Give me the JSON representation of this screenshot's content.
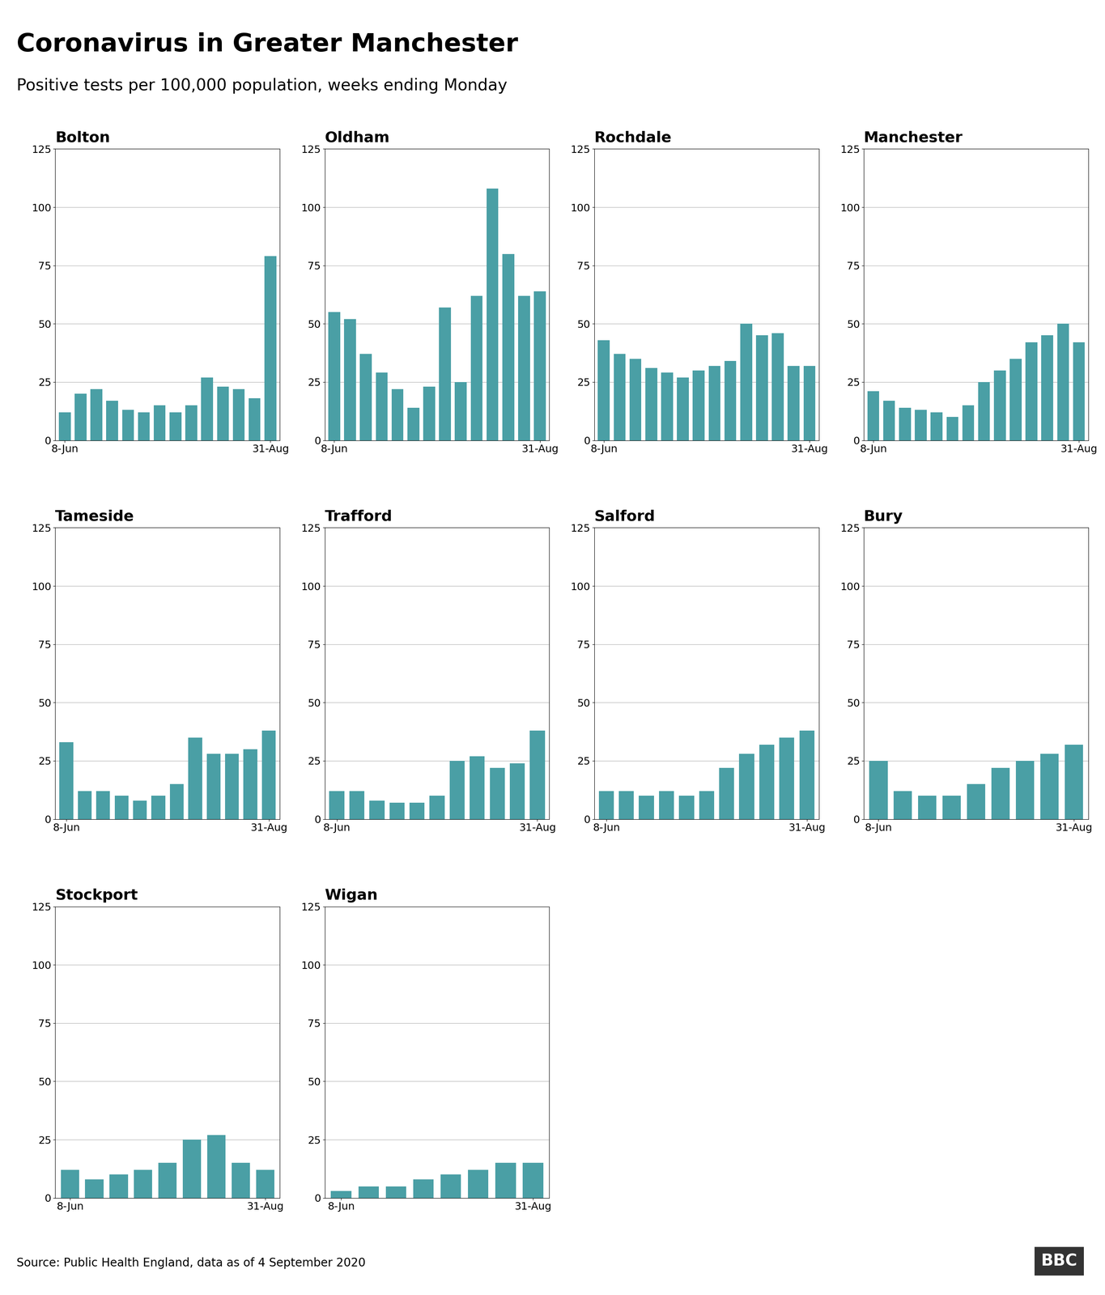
{
  "title": "Coronavirus in Greater Manchester",
  "subtitle": "Positive tests per 100,000 population, weeks ending Monday",
  "source": "Source: Public Health England, data as of 4 September 2020",
  "annotations": [
    "BBC"
  ],
  "chart_data": [
    {
      "type": "bar",
      "title": "Bolton",
      "categories": [
        "8-Jun",
        null,
        null,
        null,
        null,
        null,
        null,
        null,
        null,
        null,
        null,
        null,
        null,
        "31-Aug"
      ],
      "values": [
        12,
        20,
        22,
        17,
        13,
        12,
        15,
        12,
        15,
        27,
        23,
        22,
        18,
        79
      ],
      "color": "#4a9fa5",
      "ylim": [
        0,
        125
      ],
      "yticks": [
        0,
        25,
        50,
        75,
        100,
        125
      ],
      "grid": true
    },
    {
      "type": "bar",
      "title": "Oldham",
      "categories": [
        "8-Jun",
        null,
        null,
        null,
        null,
        null,
        null,
        null,
        null,
        null,
        null,
        null,
        null,
        "31-Aug"
      ],
      "values": [
        55,
        52,
        37,
        29,
        22,
        14,
        23,
        57,
        25,
        62,
        108,
        80,
        62,
        64
      ],
      "color": "#4a9fa5",
      "ylim": [
        0,
        125
      ],
      "yticks": [
        0,
        25,
        50,
        75,
        100,
        125
      ],
      "grid": true
    },
    {
      "type": "bar",
      "title": "Rochdale",
      "categories": [
        "8-Jun",
        null,
        null,
        null,
        null,
        null,
        null,
        null,
        null,
        null,
        null,
        null,
        null,
        "31-Aug"
      ],
      "values": [
        43,
        37,
        35,
        31,
        29,
        27,
        30,
        32,
        34,
        50,
        45,
        46,
        32,
        32
      ],
      "color": "#4a9fa5",
      "ylim": [
        0,
        125
      ],
      "yticks": [
        0,
        25,
        50,
        75,
        100,
        125
      ],
      "grid": true
    },
    {
      "type": "bar",
      "title": "Manchester",
      "categories": [
        "8-Jun",
        null,
        null,
        null,
        null,
        null,
        null,
        null,
        null,
        null,
        null,
        null,
        null,
        "31-Aug"
      ],
      "values": [
        21,
        17,
        14,
        13,
        12,
        10,
        15,
        25,
        30,
        35,
        42,
        45,
        50,
        42
      ],
      "color": "#4a9fa5",
      "ylim": [
        0,
        125
      ],
      "yticks": [
        0,
        25,
        50,
        75,
        100,
        125
      ],
      "grid": true
    },
    {
      "type": "bar",
      "title": "Tameside",
      "categories": [
        "8-Jun",
        null,
        null,
        null,
        null,
        null,
        null,
        null,
        null,
        null,
        null,
        "31-Aug"
      ],
      "values": [
        33,
        12,
        12,
        10,
        8,
        10,
        15,
        35,
        28,
        28,
        30,
        38
      ],
      "color": "#4a9fa5",
      "ylim": [
        0,
        125
      ],
      "yticks": [
        0,
        25,
        50,
        75,
        100,
        125
      ],
      "grid": true
    },
    {
      "type": "bar",
      "title": "Trafford",
      "categories": [
        "8-Jun",
        null,
        null,
        null,
        null,
        null,
        null,
        null,
        null,
        null,
        "31-Aug"
      ],
      "values": [
        12,
        12,
        8,
        7,
        7,
        10,
        25,
        27,
        22,
        24,
        38
      ],
      "color": "#4a9fa5",
      "ylim": [
        0,
        125
      ],
      "yticks": [
        0,
        25,
        50,
        75,
        100,
        125
      ],
      "grid": true
    },
    {
      "type": "bar",
      "title": "Salford",
      "categories": [
        "8-Jun",
        null,
        null,
        null,
        null,
        null,
        null,
        null,
        null,
        null,
        "31-Aug"
      ],
      "values": [
        12,
        12,
        10,
        12,
        10,
        12,
        22,
        28,
        32,
        35,
        38
      ],
      "color": "#4a9fa5",
      "ylim": [
        0,
        125
      ],
      "yticks": [
        0,
        25,
        50,
        75,
        100,
        125
      ],
      "grid": true
    },
    {
      "type": "bar",
      "title": "Bury",
      "categories": [
        "8-Jun",
        null,
        null,
        null,
        null,
        null,
        null,
        null,
        "31-Aug"
      ],
      "values": [
        25,
        12,
        10,
        10,
        15,
        22,
        25,
        28,
        32
      ],
      "color": "#4a9fa5",
      "ylim": [
        0,
        125
      ],
      "yticks": [
        0,
        25,
        50,
        75,
        100,
        125
      ],
      "grid": true
    },
    {
      "type": "bar",
      "title": "Stockport",
      "categories": [
        "8-Jun",
        null,
        null,
        null,
        null,
        null,
        null,
        null,
        "31-Aug"
      ],
      "values": [
        12,
        8,
        10,
        12,
        15,
        25,
        27,
        15,
        12
      ],
      "color": "#4a9fa5",
      "ylim": [
        0,
        125
      ],
      "yticks": [
        0,
        25,
        50,
        75,
        100,
        125
      ],
      "grid": true
    },
    {
      "type": "bar",
      "title": "Wigan",
      "categories": [
        "8-Jun",
        null,
        null,
        null,
        null,
        null,
        null,
        "31-Aug"
      ],
      "values": [
        3,
        5,
        5,
        8,
        10,
        12,
        15,
        15
      ],
      "color": "#4a9fa5",
      "ylim": [
        0,
        125
      ],
      "yticks": [
        0,
        25,
        50,
        75,
        100,
        125
      ],
      "grid": true
    }
  ]
}
